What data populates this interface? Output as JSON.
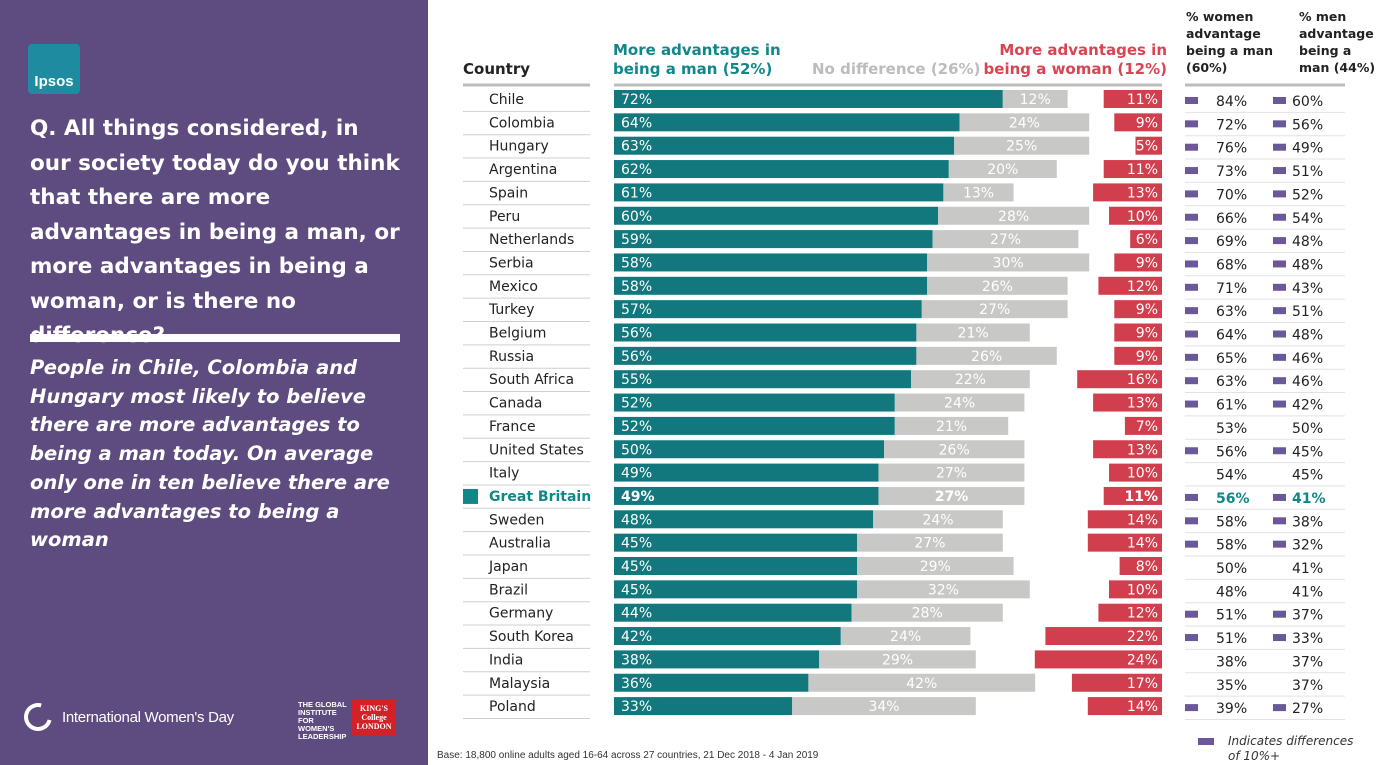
{
  "brand": {
    "logo_text": "Ipsos"
  },
  "left_panel": {
    "question": "Q. All things considered, in our society today do you think that there are more advantages in being a man, or more advantages in being a woman, or is there no difference?",
    "insight": "People in Chile, Colombia and Hungary most likely to believe there are more advantages to being a man today. On average only one in ten believe there are more advantages to being a woman",
    "iwd_label": "International Women's Day",
    "gi_logo": "THE GLOBAL INSTITUTE FOR WOMEN'S LEADERSHIP",
    "kcl_logo": "KING'S College LONDON"
  },
  "headers": {
    "country": "Country",
    "man_line1": "More advantages in",
    "man_line2": "being a man (52%)",
    "nodiff": "No difference (26%)",
    "woman_line1": "More advantages in",
    "woman_line2": "being a woman (12%)",
    "women_col": "% women advantage being a man (60%)",
    "men_col": "% men advantage being a man (44%)"
  },
  "footnote": "Base: 18,800 online adults aged 16-64 across 27 countries,  21 Dec 2018 - 4 Jan  2019",
  "legend_text": "Indicates differences of 10%+",
  "colors": {
    "man": "#12787d",
    "nodiff": "#c8c8c6",
    "woman": "#d13f4e",
    "highlight": "#12878a",
    "marker": "#6b589a",
    "rule": "#bdbdbd"
  },
  "chart_data": {
    "type": "bar",
    "orientation": "horizontal",
    "stacking": "diverging",
    "title": "Q. All things considered, in our society today do you think that there are more advantages in being a man, or more advantages in being a woman, or is there no difference?",
    "xlim": [
      0,
      100
    ],
    "highlight_category": "Great Britain",
    "categories": [
      "Chile",
      "Colombia",
      "Hungary",
      "Argentina",
      "Spain",
      "Peru",
      "Netherlands",
      "Serbia",
      "Mexico",
      "Turkey",
      "Belgium",
      "Russia",
      "South Africa",
      "Canada",
      "France",
      "United States",
      "Italy",
      "Great Britain",
      "Sweden",
      "Australia",
      "Japan",
      "Brazil",
      "Germany",
      "South Korea",
      "India",
      "Malaysia",
      "Poland"
    ],
    "series": [
      {
        "name": "More advantages in being a man (52%)",
        "values": [
          72,
          64,
          63,
          62,
          61,
          60,
          59,
          58,
          58,
          57,
          56,
          56,
          55,
          52,
          52,
          50,
          49,
          49,
          48,
          45,
          45,
          45,
          44,
          42,
          38,
          36,
          33
        ]
      },
      {
        "name": "No difference (26%)",
        "values": [
          12,
          24,
          25,
          20,
          13,
          28,
          27,
          30,
          26,
          27,
          21,
          26,
          22,
          24,
          21,
          26,
          27,
          27,
          24,
          27,
          29,
          32,
          28,
          24,
          29,
          42,
          34
        ]
      },
      {
        "name": "More advantages in being a woman (12%)",
        "values": [
          11,
          9,
          5,
          11,
          13,
          10,
          6,
          9,
          12,
          9,
          9,
          9,
          16,
          13,
          7,
          13,
          10,
          11,
          14,
          14,
          8,
          10,
          12,
          22,
          24,
          17,
          14
        ]
      }
    ],
    "women_advantage_man": [
      "84%",
      "72%",
      "76%",
      "73%",
      "70%",
      "66%",
      "69%",
      "68%",
      "71%",
      "63%",
      "64%",
      "65%",
      "63%",
      "61%",
      "53%",
      "56%",
      "54%",
      "56%",
      "58%",
      "58%",
      "50%",
      "48%",
      "51%",
      "51%",
      "38%",
      "35%",
      "39%"
    ],
    "men_advantage_man": [
      "60%",
      "56%",
      "49%",
      "51%",
      "52%",
      "54%",
      "48%",
      "48%",
      "43%",
      "51%",
      "48%",
      "46%",
      "46%",
      "42%",
      "50%",
      "45%",
      "45%",
      "41%",
      "38%",
      "32%",
      "41%",
      "41%",
      "37%",
      "33%",
      "37%",
      "37%",
      "27%"
    ],
    "difference_10plus": [
      true,
      true,
      true,
      true,
      true,
      true,
      true,
      true,
      true,
      true,
      true,
      true,
      true,
      true,
      false,
      true,
      false,
      true,
      true,
      true,
      false,
      false,
      true,
      true,
      false,
      false,
      true
    ]
  }
}
